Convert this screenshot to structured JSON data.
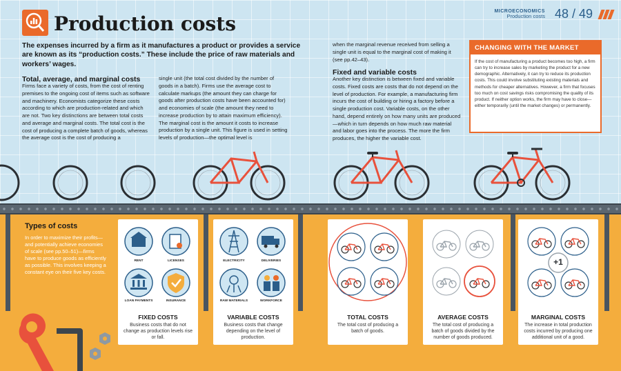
{
  "header": {
    "title": "Production costs",
    "section": "MICROECONOMICS",
    "subsection": "Production costs",
    "pages": "48 / 49"
  },
  "intro": "The expenses incurred by a firm as it manufactures a product or provides a service are known as its “production costs.” These include the price of raw materials and workers’ wages.",
  "total_section": {
    "heading": "Total, average, and marginal costs",
    "col1": "Firms face a variety of costs, from the cost of renting premises to the ongoing cost of items such as software and machinery. Economists categorize these costs according to which are production-related and which are not. Two key distinctions are between total costs and average and marginal costs. The total cost is the cost of producing a complete batch of goods, whereas the average cost is the cost of producing a",
    "col2": "single unit (the total cost divided by the number of goods in a batch). Firms use the average cost to calculate markups (the amount they can charge for goods after production costs have been accounted for) and economies of scale (the amount they need to increase production by to attain maximum efficiency). The marginal cost is the amount it costs to increase production by a single unit. This figure is used in setting levels of production—the optimal level is",
    "col3": "when the marginal revenue received from selling a single unit is equal to the marginal cost of making it (see pp.42–43)."
  },
  "fixed_variable": {
    "heading": "Fixed and variable costs",
    "text": "Another key distinction is between fixed and variable costs. Fixed costs are costs that do not depend on the level of production. For example, a manufacturing firm incurs the cost of building or hiring a factory before a single production cost. Variable costs, on the other hand, depend entirely on how many units are produced—which in turn depends on how much raw material and labor goes into the process. The more the firm produces, the higher the variable cost."
  },
  "sidebar": {
    "heading": "CHANGING WITH THE MARKET",
    "text": "If the cost of manufacturing a product becomes too high, a firm can try to increase sales by marketing the product for a new demographic. Alternatively, it can try to reduce its production costs. This could involve substituting existing materials and methods for cheaper alternatives. However, a firm that focuses too much on cost savings risks compromising the quality of its product. If neither option works, the firm may have to close—either temporarily (until the market changes) or permanently."
  },
  "types": {
    "heading": "Types of costs",
    "text": "In order to maximize their profits—and potentially achieve economies of scale (see pp.50–51)—firms have to produce goods as efficiently as possible. This involves keeping a constant eye on their five key costs."
  },
  "cards": [
    {
      "title": "FIXED COSTS",
      "desc": "Business costs that do not change as production levels rise or fall.",
      "icons": [
        "RENT",
        "LICENSES",
        "LOAN PAYMENTS",
        "INSURANCE"
      ]
    },
    {
      "title": "VARIABLE COSTS",
      "desc": "Business costs that change depending on the level of production.",
      "icons": [
        "ELECTRICITY",
        "DELIVERIES",
        "RAW MATERIALS",
        "WORKFORCE"
      ]
    },
    {
      "title": "TOTAL COSTS",
      "desc": "The total cost of producing a batch of goods."
    },
    {
      "title": "AVERAGE COSTS",
      "desc": "The total cost of producing a batch of goods divided by the number of goods produced."
    },
    {
      "title": "MARGINAL COSTS",
      "desc": "The increase in total production costs incurred by producing one additional unit of a good.",
      "badge": "+1"
    }
  ],
  "colors": {
    "accent": "#ea6a2a",
    "blue": "#2b5e8a",
    "ground": "#f4ad3d",
    "sky": "#cde5f1"
  }
}
